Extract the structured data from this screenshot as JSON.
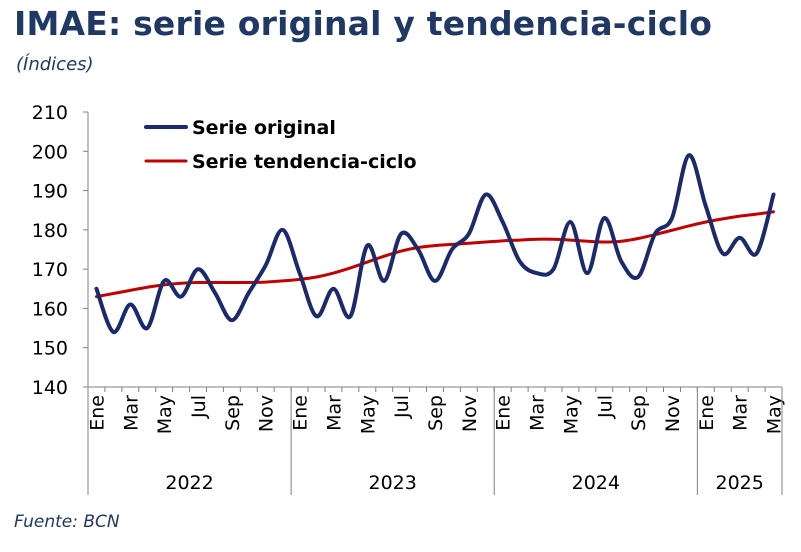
{
  "title": "IMAE: serie original y tendencia-ciclo",
  "subtitle": "(Índices)",
  "source": "Fuente: BCN",
  "colors": {
    "title": "#1f3864",
    "original": "#1b2a6b",
    "trend": "#c00000"
  },
  "chart_data": {
    "type": "line",
    "title": "IMAE: serie original y tendencia-ciclo",
    "subtitle": "(Índices)",
    "ylim": [
      140,
      210
    ],
    "yticks": [
      140,
      150,
      160,
      170,
      180,
      190,
      200,
      210
    ],
    "x_tick_labels": [
      "Ene",
      "Mar",
      "May",
      "Jul",
      "Sep",
      "Nov",
      "Ene",
      "Mar",
      "May",
      "Jul",
      "Sep",
      "Nov",
      "Ene",
      "Mar",
      "May",
      "Jul",
      "Sep",
      "Nov",
      "Ene",
      "Mar",
      "May"
    ],
    "years": [
      {
        "label": "2022",
        "months": 12
      },
      {
        "label": "2023",
        "months": 12
      },
      {
        "label": "2024",
        "months": 12
      },
      {
        "label": "2025",
        "months": 5
      }
    ],
    "legend": "top-left",
    "series": [
      {
        "name": "Serie original",
        "values": [
          165,
          154,
          161,
          155,
          167,
          163,
          170,
          164,
          157,
          164,
          171,
          180,
          169,
          158,
          165,
          158,
          176,
          167,
          179,
          175,
          167,
          175,
          179,
          189,
          182,
          172,
          169,
          170,
          182,
          169,
          183,
          172,
          168,
          179,
          183,
          199,
          186,
          174,
          178,
          174,
          189
        ]
      },
      {
        "name": "Serie tendencia-ciclo",
        "values": [
          163,
          163.8,
          164.6,
          165.4,
          166,
          166.4,
          166.6,
          166.6,
          166.6,
          166.6,
          166.7,
          167,
          167.4,
          168,
          169,
          170.3,
          171.8,
          173.3,
          174.6,
          175.5,
          176,
          176.3,
          176.6,
          176.9,
          177.2,
          177.4,
          177.6,
          177.6,
          177.4,
          177.1,
          176.9,
          177.1,
          177.8,
          178.8,
          179.9,
          181,
          182,
          182.8,
          183.5,
          184,
          184.6
        ]
      }
    ]
  }
}
